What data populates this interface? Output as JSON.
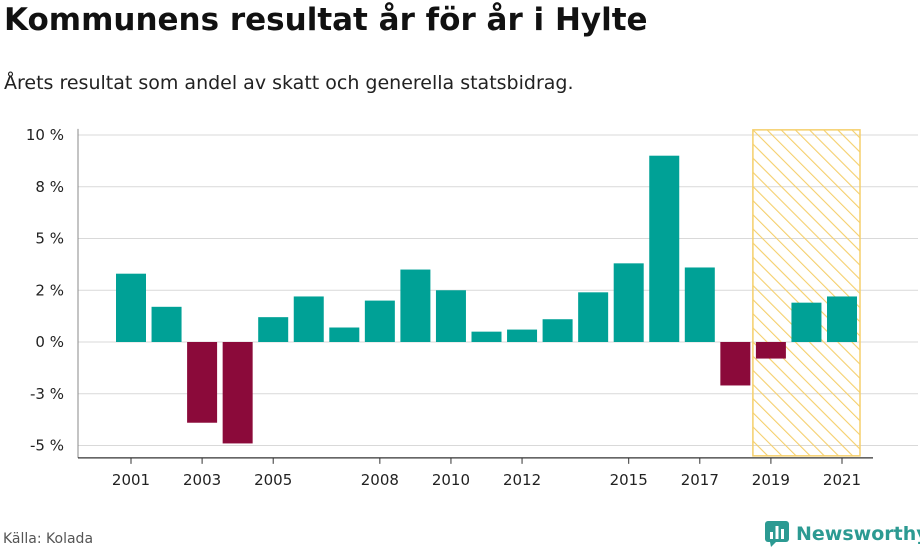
{
  "header": {
    "title": "Kommunens resultat år för år i Hylte",
    "subtitle": "Årets resultat som andel av skatt och generella statsbidrag."
  },
  "footer": {
    "source": "Källa: Kolada",
    "brand": "Newsworthy",
    "brand_icon": "newsworthy-logo-icon"
  },
  "colors": {
    "positive": "#00a196",
    "negative": "#8b0a3a",
    "forecast_stroke": "#f5cf6b",
    "grid": "#d9d9d9"
  },
  "chart_data": {
    "type": "bar",
    "ylim": [
      -5.5,
      10.2
    ],
    "grid": true,
    "y_ticks": [
      {
        "value": 10,
        "label": "10 %"
      },
      {
        "value": 7.5,
        "label": "8 %"
      },
      {
        "value": 5,
        "label": "5 %"
      },
      {
        "value": 2.5,
        "label": "2 %"
      },
      {
        "value": 0,
        "label": "0 %"
      },
      {
        "value": -2.5,
        "label": "-3 %"
      },
      {
        "value": -5,
        "label": "-5 %"
      }
    ],
    "x_tick_labels": [
      "2001",
      "2003",
      "2005",
      "2008",
      "2010",
      "2012",
      "2015",
      "2017",
      "2019",
      "2021"
    ],
    "categories": [
      "2001",
      "2002",
      "2003",
      "2004",
      "2005",
      "2006",
      "2007",
      "2008",
      "2009",
      "2010",
      "2011",
      "2012",
      "2013",
      "2014",
      "2015",
      "2016",
      "2017",
      "2018",
      "2019",
      "2020",
      "2021"
    ],
    "values": [
      3.3,
      1.7,
      -3.9,
      -4.9,
      1.2,
      2.2,
      0.7,
      2.0,
      3.5,
      2.5,
      0.5,
      0.6,
      1.1,
      2.4,
      3.8,
      9.0,
      3.6,
      -2.1,
      -0.8,
      1.9,
      2.2
    ],
    "forecast": {
      "from": "2019",
      "to": "2021"
    }
  }
}
